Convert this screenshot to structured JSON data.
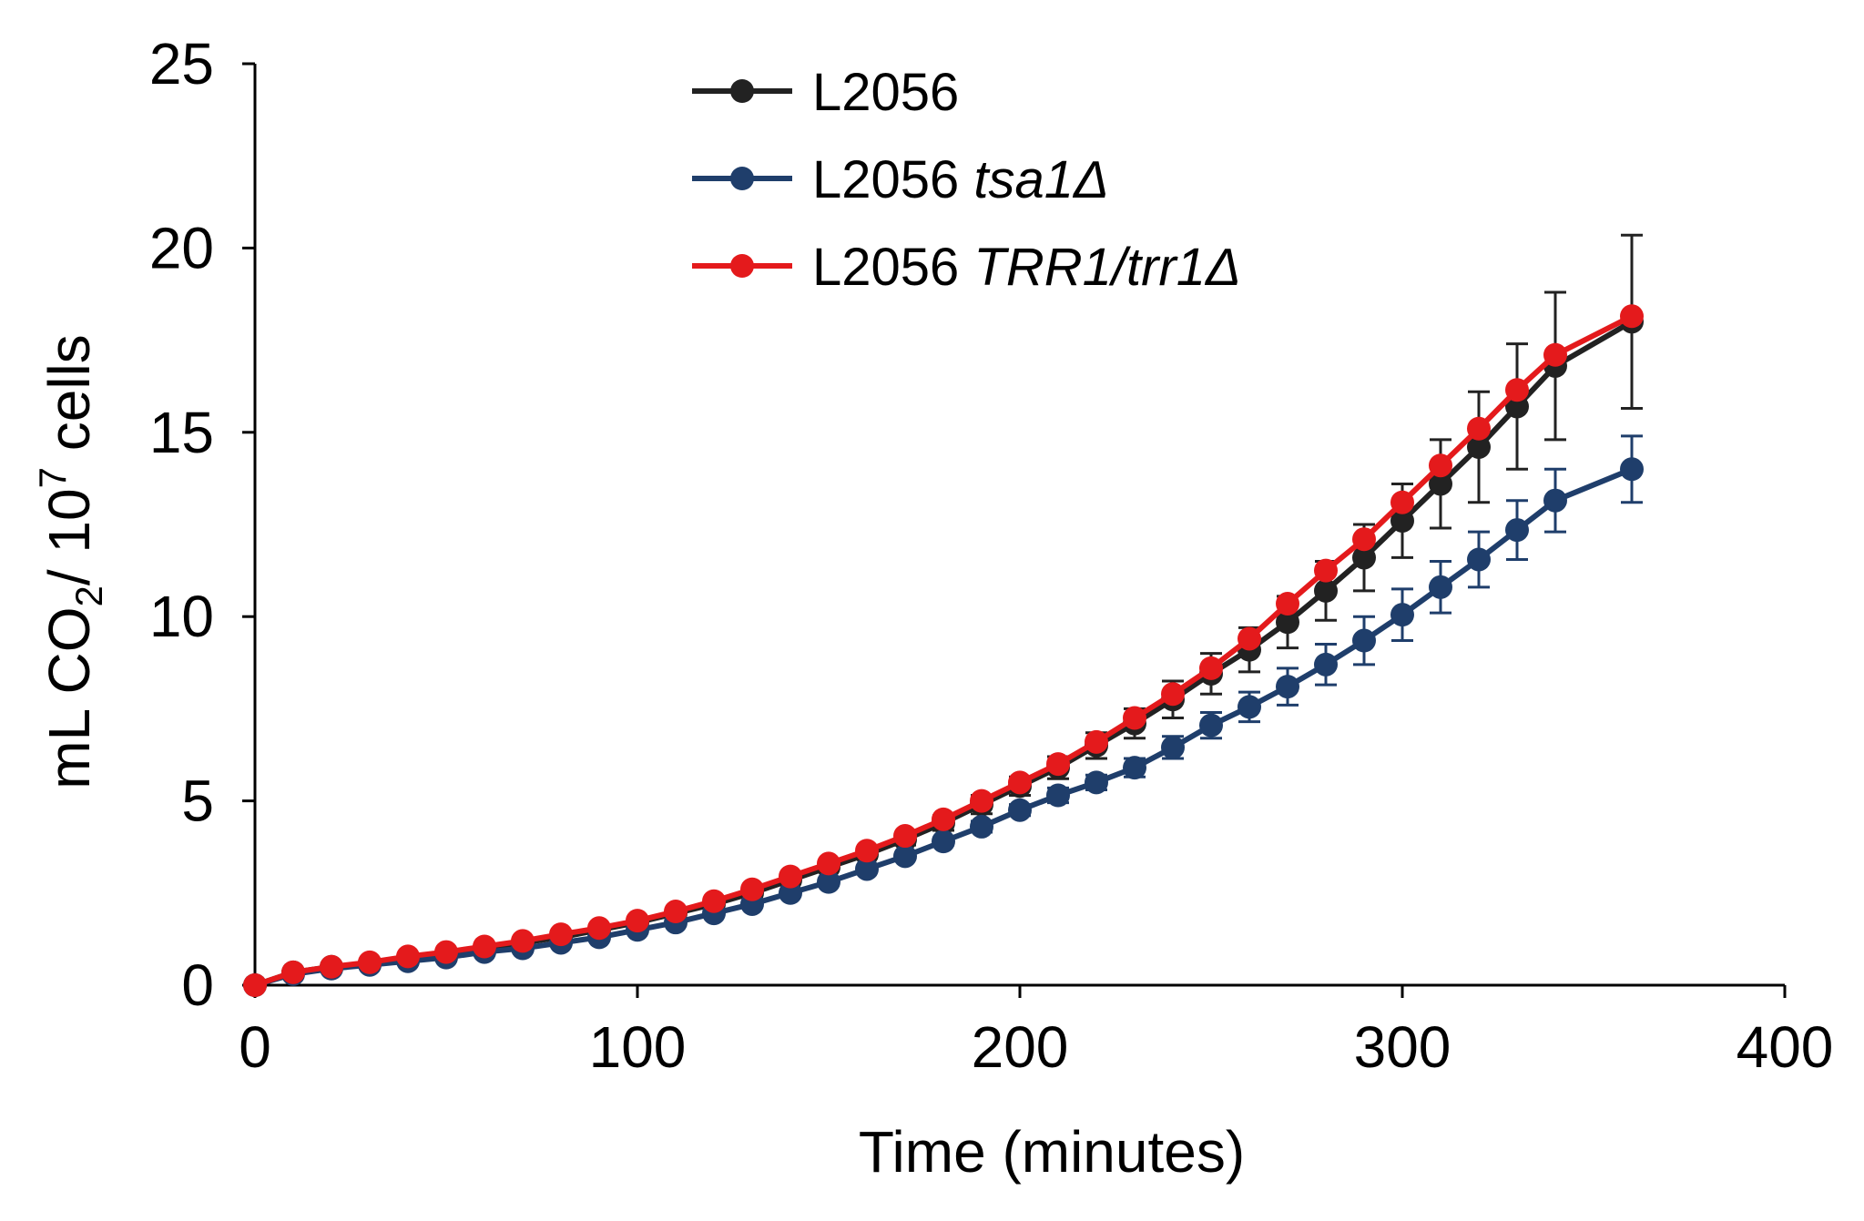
{
  "chart_data": {
    "type": "line",
    "title": "",
    "xlabel": "Time (minutes)",
    "ylabel": {
      "main": "mL CO",
      "sub": "2",
      "mid": "/ 10",
      "sup": "7",
      "end": " cells"
    },
    "xlim": [
      0,
      400
    ],
    "ylim": [
      0,
      25
    ],
    "xticks": [
      0,
      100,
      200,
      300,
      400
    ],
    "yticks": [
      0,
      5,
      10,
      15,
      20,
      25
    ],
    "xtick_labels": [
      "0",
      "100",
      "200",
      "300",
      "400"
    ],
    "ytick_labels": [
      "0",
      "5",
      "10",
      "15",
      "20",
      "25"
    ],
    "grid": false,
    "legend_position": "top-center",
    "x": [
      0,
      10,
      20,
      30,
      40,
      50,
      60,
      70,
      80,
      90,
      100,
      110,
      120,
      130,
      140,
      150,
      160,
      170,
      180,
      190,
      200,
      210,
      220,
      230,
      240,
      250,
      260,
      270,
      280,
      290,
      300,
      310,
      320,
      330,
      340,
      360
    ],
    "series": [
      {
        "name": "L2056",
        "label": {
          "plain": "L2056",
          "italic": ""
        },
        "color": "#222222",
        "values": [
          0,
          0.35,
          0.5,
          0.6,
          0.75,
          0.85,
          1.0,
          1.15,
          1.3,
          1.5,
          1.7,
          1.95,
          2.2,
          2.5,
          2.85,
          3.2,
          3.55,
          3.95,
          4.4,
          4.9,
          5.4,
          5.9,
          6.5,
          7.1,
          7.75,
          8.45,
          9.1,
          9.85,
          10.7,
          11.6,
          12.6,
          13.6,
          14.6,
          15.7,
          16.8,
          18.0
        ],
        "errors": [
          0,
          0,
          0,
          0,
          0,
          0,
          0,
          0,
          0,
          0,
          0,
          0,
          0,
          0,
          0,
          0,
          0.1,
          0.15,
          0.2,
          0.25,
          0.25,
          0.3,
          0.35,
          0.4,
          0.5,
          0.55,
          0.6,
          0.7,
          0.8,
          0.9,
          1.0,
          1.2,
          1.5,
          1.7,
          2.0,
          2.35
        ]
      },
      {
        "name": "L2056 tsa1Δ",
        "label": {
          "plain": "L2056 ",
          "italic": "tsa1Δ"
        },
        "color": "#1F3E6B",
        "values": [
          0,
          0.3,
          0.45,
          0.55,
          0.65,
          0.75,
          0.9,
          1.0,
          1.15,
          1.3,
          1.5,
          1.7,
          1.95,
          2.2,
          2.5,
          2.8,
          3.15,
          3.5,
          3.9,
          4.3,
          4.75,
          5.15,
          5.5,
          5.9,
          6.45,
          7.05,
          7.55,
          8.1,
          8.7,
          9.35,
          10.05,
          10.8,
          11.55,
          12.35,
          13.15,
          14.0
        ],
        "errors": [
          0,
          0,
          0,
          0,
          0,
          0,
          0,
          0,
          0,
          0,
          0,
          0,
          0,
          0,
          0,
          0,
          0,
          0,
          0.1,
          0.15,
          0.15,
          0.2,
          0.2,
          0.25,
          0.3,
          0.35,
          0.4,
          0.5,
          0.55,
          0.65,
          0.7,
          0.7,
          0.75,
          0.8,
          0.85,
          0.9
        ]
      },
      {
        "name": "L2056 TRR1/trr1Δ",
        "label": {
          "plain": "L2056 ",
          "italic": "TRR1/trr1Δ"
        },
        "color": "#E41A1C",
        "values": [
          0,
          0.35,
          0.5,
          0.62,
          0.78,
          0.9,
          1.05,
          1.2,
          1.38,
          1.55,
          1.75,
          2.0,
          2.28,
          2.6,
          2.95,
          3.3,
          3.65,
          4.05,
          4.5,
          5.0,
          5.5,
          6.0,
          6.6,
          7.25,
          7.9,
          8.6,
          9.4,
          10.35,
          11.25,
          12.1,
          13.1,
          14.1,
          15.1,
          16.15,
          17.1,
          18.15
        ]
      }
    ],
    "legend": [
      "L2056",
      "L2056 tsa1Δ",
      "L2056 TRR1/trr1Δ"
    ]
  }
}
